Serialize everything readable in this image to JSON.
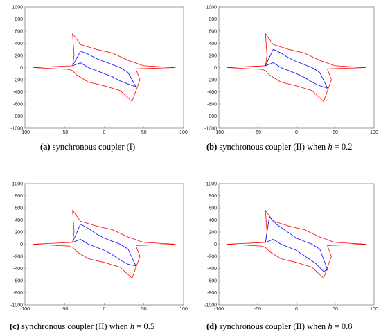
{
  "figure": {
    "panels": [
      {
        "tag": "(a)",
        "caption": "synchronous coupler (I)",
        "param_label": "",
        "param_value": ""
      },
      {
        "tag": "(b)",
        "caption": "synchronous coupler (II) when",
        "param_label": "h",
        "param_value": "= 0.2"
      },
      {
        "tag": "(c)",
        "caption": "synchronous coupler (II) when",
        "param_label": "h",
        "param_value": "= 0.5"
      },
      {
        "tag": "(d)",
        "caption": "synchronous coupler (II) when",
        "param_label": "h",
        "param_value": "= 0.8"
      }
    ]
  },
  "colors": {
    "outer_curve": "#ff0000",
    "inner_curve": "#0000ff",
    "axes": "#7f7f7f"
  },
  "chart_data": [
    {
      "type": "line",
      "title": "",
      "xlabel": "",
      "ylabel": "",
      "xlim": [
        -100,
        100
      ],
      "ylim": [
        -1000,
        1000
      ],
      "xticks": [
        "-100",
        "-50",
        "0",
        "50",
        "100"
      ],
      "yticks": [
        "1000",
        "800",
        "600",
        "400",
        "200",
        "0",
        "-200",
        "-400",
        "-600",
        "-800",
        "-1000"
      ],
      "grid": false,
      "series": [
        {
          "color": "#ff0000",
          "x": [
            90,
            50,
            45,
            30,
            10,
            -10,
            -30,
            -40,
            -38,
            -40,
            -90,
            -45,
            -40,
            -35,
            -20,
            0,
            20,
            35,
            45,
            40,
            40,
            90
          ],
          "y": [
            0,
            30,
            50,
            120,
            240,
            300,
            380,
            560,
            200,
            30,
            0,
            -30,
            -50,
            -120,
            -240,
            -300,
            -380,
            -560,
            -200,
            -30,
            -20,
            0
          ]
        },
        {
          "color": "#0000ff",
          "x": [
            -40,
            -30,
            -20,
            -10,
            0,
            10,
            20,
            30,
            40,
            30,
            20,
            10,
            0,
            -10,
            -20,
            -30,
            -40
          ],
          "y": [
            30,
            270,
            220,
            150,
            100,
            50,
            0,
            -80,
            -320,
            -270,
            -220,
            -150,
            -100,
            -50,
            0,
            80,
            30
          ]
        }
      ]
    },
    {
      "type": "line",
      "title": "",
      "xlabel": "",
      "ylabel": "",
      "xlim": [
        -100,
        100
      ],
      "ylim": [
        -1000,
        1000
      ],
      "xticks": [
        "-100",
        "-50",
        "0",
        "50",
        "100"
      ],
      "yticks": [
        "1000",
        "800",
        "600",
        "400",
        "200",
        "0",
        "-200",
        "-400",
        "-600",
        "-800",
        "-1000"
      ],
      "grid": false,
      "series": [
        {
          "color": "#ff0000",
          "x": [
            90,
            50,
            45,
            30,
            10,
            -10,
            -30,
            -40,
            -38,
            -40,
            -90,
            -45,
            -40,
            -35,
            -20,
            0,
            20,
            35,
            45,
            40,
            40,
            90
          ],
          "y": [
            0,
            30,
            50,
            120,
            240,
            300,
            380,
            560,
            200,
            30,
            0,
            -30,
            -50,
            -120,
            -240,
            -300,
            -380,
            -560,
            -200,
            -30,
            -20,
            0
          ]
        },
        {
          "color": "#0000ff",
          "x": [
            -40,
            -30,
            -20,
            -10,
            0,
            10,
            20,
            30,
            40,
            30,
            20,
            10,
            0,
            -10,
            -20,
            -30,
            -40
          ],
          "y": [
            30,
            300,
            240,
            160,
            100,
            50,
            0,
            -80,
            -340,
            -300,
            -240,
            -160,
            -100,
            -50,
            0,
            80,
            30
          ]
        }
      ]
    },
    {
      "type": "line",
      "title": "",
      "xlabel": "",
      "ylabel": "",
      "xlim": [
        -100,
        100
      ],
      "ylim": [
        -1000,
        1000
      ],
      "xticks": [
        "-100",
        "-50",
        "0",
        "50",
        "100"
      ],
      "yticks": [
        "1000",
        "800",
        "600",
        "400",
        "200",
        "0",
        "-200",
        "-400",
        "-600",
        "-800",
        "-1000"
      ],
      "grid": false,
      "series": [
        {
          "color": "#ff0000",
          "x": [
            90,
            50,
            45,
            30,
            10,
            -10,
            -30,
            -40,
            -38,
            -40,
            -90,
            -45,
            -40,
            -35,
            -20,
            0,
            20,
            35,
            45,
            40,
            40,
            90
          ],
          "y": [
            0,
            30,
            50,
            120,
            240,
            300,
            380,
            560,
            200,
            30,
            0,
            -30,
            -50,
            -120,
            -240,
            -300,
            -380,
            -560,
            -200,
            -30,
            -20,
            0
          ]
        },
        {
          "color": "#0000ff",
          "x": [
            -40,
            -30,
            -20,
            -10,
            0,
            10,
            20,
            30,
            40,
            30,
            20,
            10,
            0,
            -10,
            -20,
            -30,
            -40
          ],
          "y": [
            30,
            330,
            260,
            170,
            100,
            50,
            0,
            -80,
            -360,
            -330,
            -260,
            -170,
            -100,
            -50,
            0,
            80,
            30
          ]
        }
      ]
    },
    {
      "type": "line",
      "title": "",
      "xlabel": "",
      "ylabel": "",
      "xlim": [
        -100,
        100
      ],
      "ylim": [
        -1000,
        1000
      ],
      "xticks": [
        "-100",
        "-50",
        "0",
        "50",
        "100"
      ],
      "yticks": [
        "1000",
        "800",
        "600",
        "400",
        "200",
        "0",
        "-200",
        "-400",
        "-600",
        "-800",
        "-1000"
      ],
      "grid": false,
      "series": [
        {
          "color": "#ff0000",
          "x": [
            90,
            50,
            45,
            30,
            10,
            -10,
            -30,
            -40,
            -38,
            -40,
            -90,
            -45,
            -40,
            -35,
            -20,
            0,
            20,
            35,
            45,
            40,
            40,
            90
          ],
          "y": [
            0,
            30,
            50,
            120,
            240,
            300,
            380,
            560,
            200,
            30,
            0,
            -30,
            -50,
            -120,
            -240,
            -300,
            -380,
            -560,
            -200,
            -30,
            -20,
            0
          ]
        },
        {
          "color": "#0000ff",
          "x": [
            -40,
            -35,
            -25,
            -10,
            0,
            10,
            20,
            30,
            40,
            35,
            25,
            10,
            0,
            -10,
            -20,
            -30,
            -40
          ],
          "y": [
            30,
            450,
            320,
            190,
            100,
            50,
            0,
            -80,
            -420,
            -450,
            -320,
            -190,
            -100,
            -50,
            0,
            80,
            30
          ]
        }
      ]
    }
  ]
}
